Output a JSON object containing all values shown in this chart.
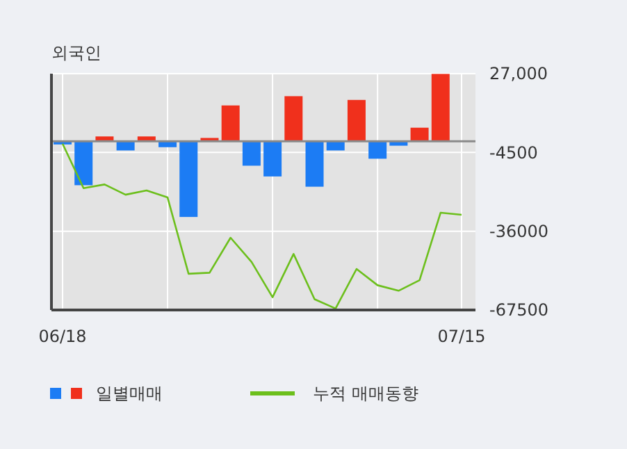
{
  "chart_data": {
    "type": "bar",
    "title": "외국인",
    "categories": [
      "06/18",
      null,
      null,
      null,
      null,
      null,
      null,
      null,
      null,
      null,
      null,
      null,
      null,
      null,
      null,
      null,
      null,
      null,
      null,
      "07/15"
    ],
    "series": [
      {
        "name": "일별매매",
        "colors": [
          "#1c7cf4",
          "#1c7cf4",
          "#f0301c",
          "#1c7cf4",
          "#f0301c",
          "#1c7cf4",
          "#1c7cf4",
          "#f0301c",
          "#f0301c",
          "#1c7cf4",
          "#1c7cf4",
          "#f0301c",
          "#1c7cf4",
          "#1c7cf4",
          "#f0301c",
          "#1c7cf4",
          "#1c7cf4",
          "#f0301c",
          "#f0301c",
          null
        ],
        "values": [
          -1300,
          -17600,
          1900,
          -3700,
          1900,
          -2400,
          -30300,
          1300,
          14300,
          -9800,
          -14100,
          18000,
          -18200,
          -3700,
          16500,
          -7000,
          -1800,
          5400,
          26900,
          null
        ]
      },
      {
        "name": "누적 매매동향",
        "type": "line",
        "color": "#6cbf1c",
        "values": [
          -1000,
          -18800,
          -17300,
          -21400,
          -19700,
          -22500,
          -53000,
          -52600,
          -38600,
          -48300,
          -62400,
          -45100,
          -63200,
          -66900,
          -51100,
          -57600,
          -59800,
          -55600,
          -28600,
          -29400
        ]
      }
    ],
    "ylim": [
      -67500,
      27000
    ],
    "yticks": [
      {
        "value": 27000,
        "label": "27,000"
      },
      -4500,
      -36000,
      -67500
    ],
    "grid": true,
    "legend": "bottom",
    "marker": "none"
  }
}
